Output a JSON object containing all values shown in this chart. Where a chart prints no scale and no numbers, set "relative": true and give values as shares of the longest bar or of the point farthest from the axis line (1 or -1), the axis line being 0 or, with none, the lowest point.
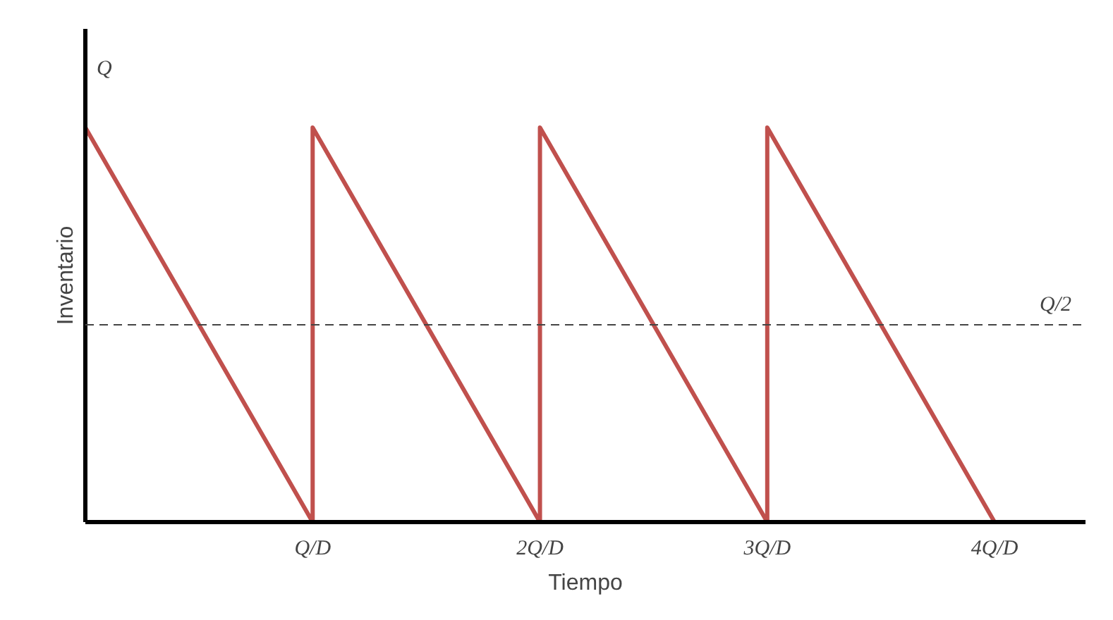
{
  "chart_data": {
    "type": "line",
    "xlabel": "Tiempo",
    "ylabel": "Inventario",
    "relative": true,
    "annotations": [
      "Q"
    ],
    "x": [
      0,
      1,
      1,
      2,
      2,
      3,
      3,
      4
    ],
    "series": [
      {
        "color": "#c0504d",
        "values": [
          1,
          0,
          1,
          0,
          1,
          0,
          1,
          0
        ]
      }
    ],
    "xlim": [
      0,
      4.4
    ],
    "xticks": [
      {
        "value": 1,
        "label": "Q/D"
      },
      {
        "value": 2,
        "label": "2Q/D"
      },
      {
        "value": 3,
        "label": "3Q/D"
      },
      {
        "value": 4,
        "label": "4Q/D"
      }
    ],
    "ref_lines": [
      {
        "axis": "y",
        "value": 0.5,
        "label": "Q/2",
        "color": "#444444",
        "line_style": "dashed"
      }
    ],
    "grid": false,
    "marker": "none",
    "line_style": "solid"
  }
}
